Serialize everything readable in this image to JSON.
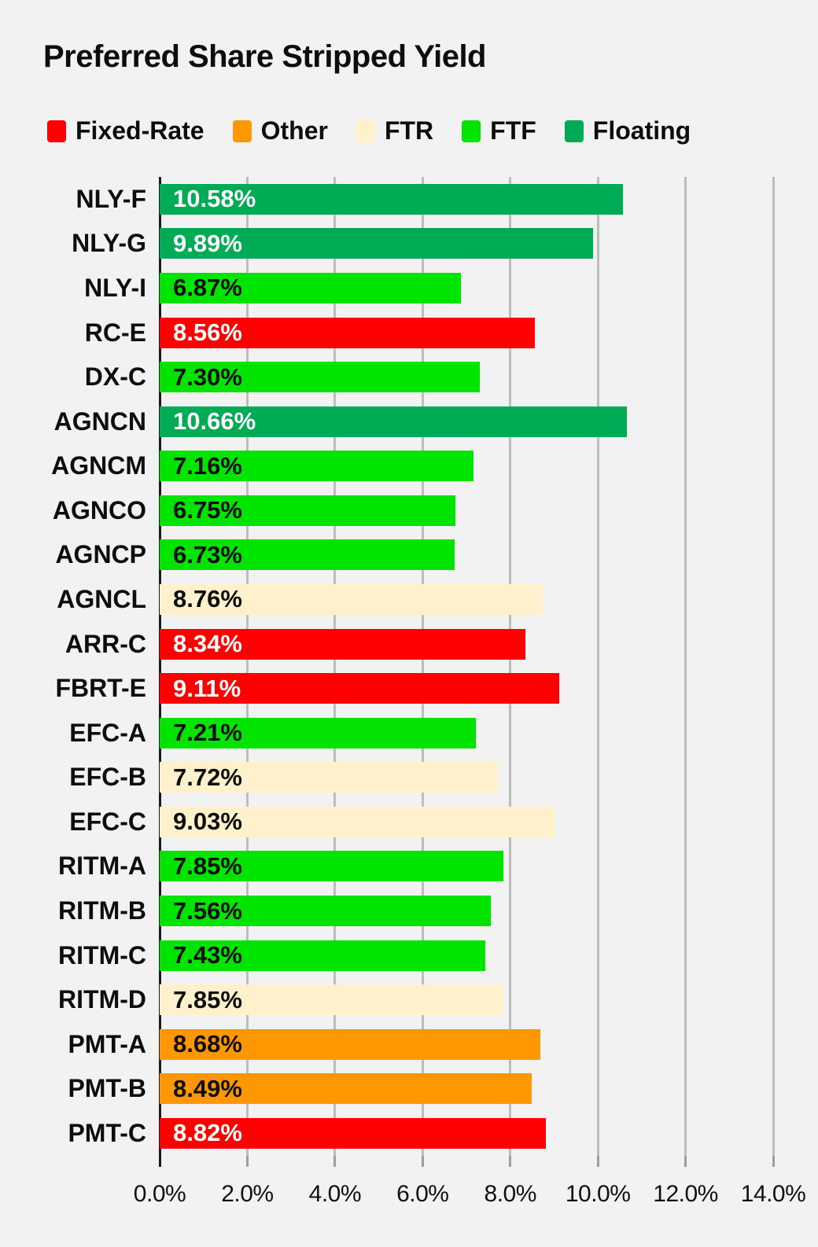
{
  "title": "Preferred Share Stripped Yield",
  "colors": {
    "background": "#f2f2f2",
    "gridline": "#bdbdbd",
    "axis_line": "#1a1a1a",
    "tick_mark": "#9e9e9e",
    "text": "#0d0d0d"
  },
  "category_styles": {
    "Fixed-Rate": {
      "bar": "#ff0000",
      "text": "#ffffff"
    },
    "Other": {
      "bar": "#ff9800",
      "text": "#0d0d0d"
    },
    "FTR": {
      "bar": "#fff1cc",
      "text": "#0d0d0d"
    },
    "FTF": {
      "bar": "#00e400",
      "text": "#0d0d0d"
    },
    "Floating": {
      "bar": "#00ab55",
      "text": "#ffffff"
    }
  },
  "legend": {
    "items": [
      {
        "label": "Fixed-Rate",
        "category": "Fixed-Rate"
      },
      {
        "label": "Other",
        "category": "Other"
      },
      {
        "label": "FTR",
        "category": "FTR"
      },
      {
        "label": "FTF",
        "category": "FTF"
      },
      {
        "label": "Floating",
        "category": "Floating"
      }
    ]
  },
  "chart_data": {
    "type": "bar",
    "orientation": "horizontal",
    "title": "Preferred Share Stripped Yield",
    "xlabel": "",
    "ylabel": "",
    "xlim": [
      0,
      14
    ],
    "grid": true,
    "legend_position": "top",
    "x_tick_labels": [
      "0.0%",
      "2.0%",
      "4.0%",
      "6.0%",
      "8.0%",
      "10.0%",
      "12.0%",
      "14.0%"
    ],
    "x_tick_values": [
      0,
      2,
      4,
      6,
      8,
      10,
      12,
      14
    ],
    "bars": [
      {
        "category_label": "NLY-F",
        "value": 10.58,
        "value_label": "10.58%",
        "series": "Floating"
      },
      {
        "category_label": "NLY-G",
        "value": 9.89,
        "value_label": "9.89%",
        "series": "Floating"
      },
      {
        "category_label": "NLY-I",
        "value": 6.87,
        "value_label": "6.87%",
        "series": "FTF"
      },
      {
        "category_label": "RC-E",
        "value": 8.56,
        "value_label": "8.56%",
        "series": "Fixed-Rate"
      },
      {
        "category_label": "DX-C",
        "value": 7.3,
        "value_label": "7.30%",
        "series": "FTF"
      },
      {
        "category_label": "AGNCN",
        "value": 10.66,
        "value_label": "10.66%",
        "series": "Floating"
      },
      {
        "category_label": "AGNCM",
        "value": 7.16,
        "value_label": "7.16%",
        "series": "FTF"
      },
      {
        "category_label": "AGNCO",
        "value": 6.75,
        "value_label": "6.75%",
        "series": "FTF"
      },
      {
        "category_label": "AGNCP",
        "value": 6.73,
        "value_label": "6.73%",
        "series": "FTF"
      },
      {
        "category_label": "AGNCL",
        "value": 8.76,
        "value_label": "8.76%",
        "series": "FTR"
      },
      {
        "category_label": "ARR-C",
        "value": 8.34,
        "value_label": "8.34%",
        "series": "Fixed-Rate"
      },
      {
        "category_label": "FBRT-E",
        "value": 9.11,
        "value_label": "9.11%",
        "series": "Fixed-Rate"
      },
      {
        "category_label": "EFC-A",
        "value": 7.21,
        "value_label": "7.21%",
        "series": "FTF"
      },
      {
        "category_label": "EFC-B",
        "value": 7.72,
        "value_label": "7.72%",
        "series": "FTR"
      },
      {
        "category_label": "EFC-C",
        "value": 9.03,
        "value_label": "9.03%",
        "series": "FTR"
      },
      {
        "category_label": "RITM-A",
        "value": 7.85,
        "value_label": "7.85%",
        "series": "FTF"
      },
      {
        "category_label": "RITM-B",
        "value": 7.56,
        "value_label": "7.56%",
        "series": "FTF"
      },
      {
        "category_label": "RITM-C",
        "value": 7.43,
        "value_label": "7.43%",
        "series": "FTF"
      },
      {
        "category_label": "RITM-D",
        "value": 7.85,
        "value_label": "7.85%",
        "series": "FTR"
      },
      {
        "category_label": "PMT-A",
        "value": 8.68,
        "value_label": "8.68%",
        "series": "Other"
      },
      {
        "category_label": "PMT-B",
        "value": 8.49,
        "value_label": "8.49%",
        "series": "Other"
      },
      {
        "category_label": "PMT-C",
        "value": 8.82,
        "value_label": "8.82%",
        "series": "Fixed-Rate"
      }
    ]
  }
}
